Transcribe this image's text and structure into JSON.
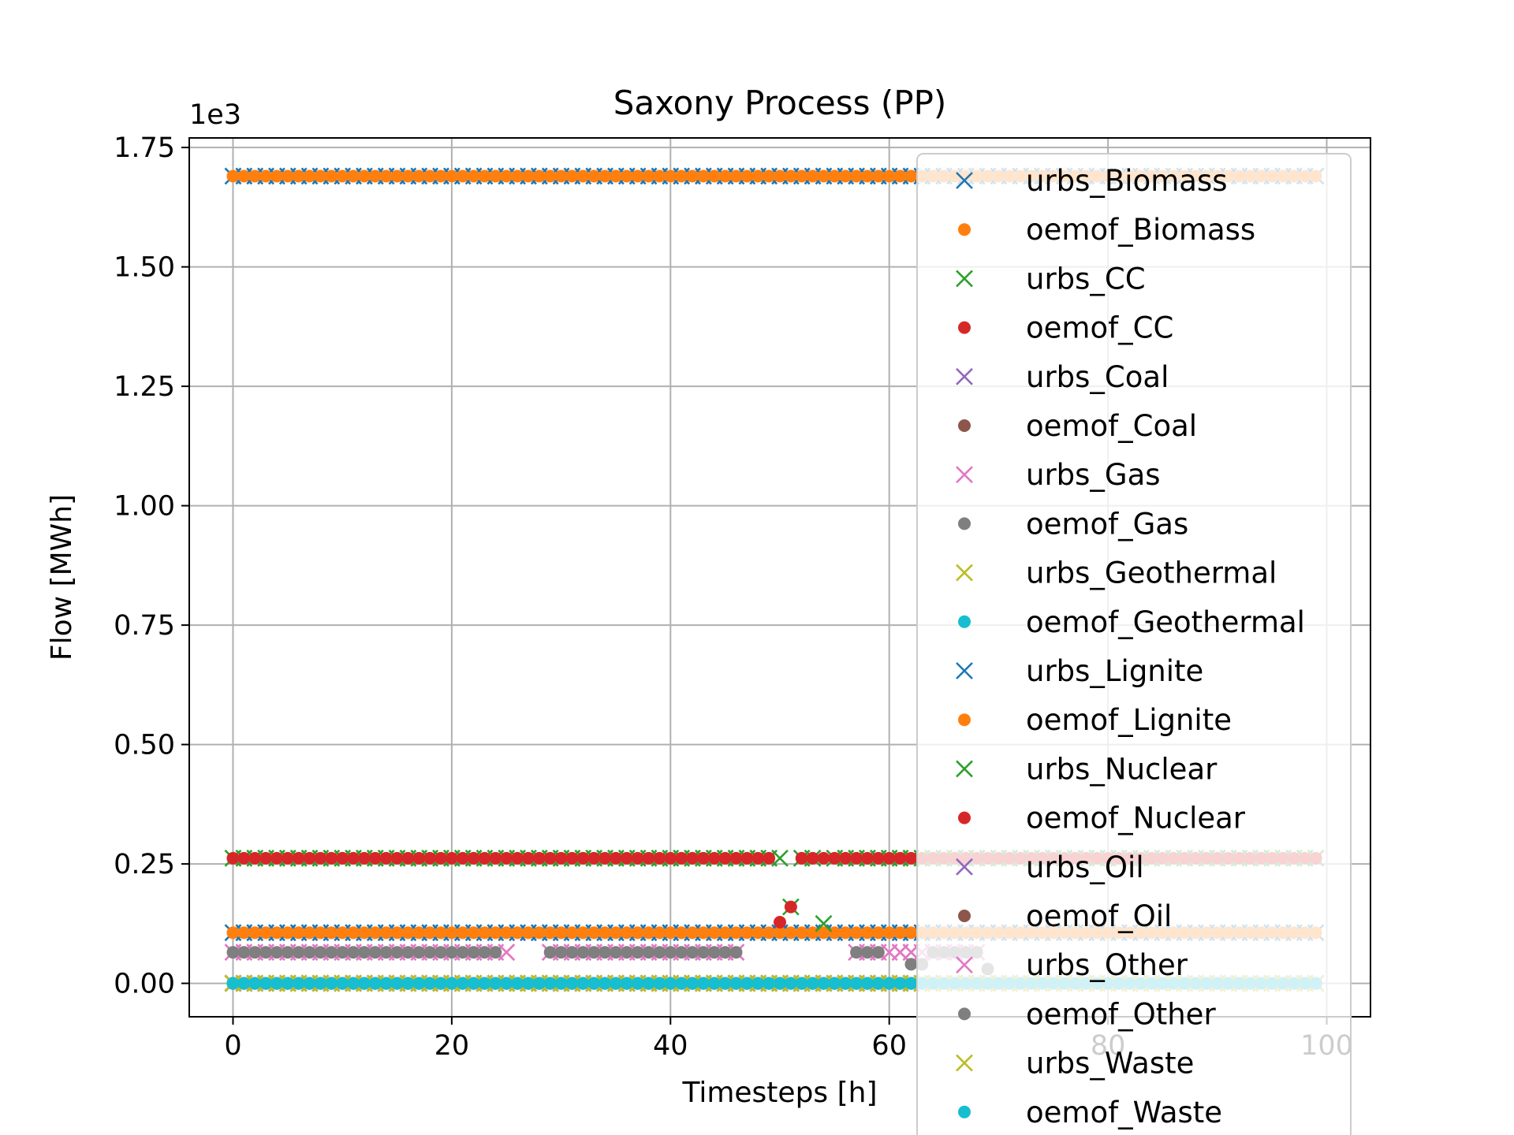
{
  "chart_data": {
    "type": "scatter",
    "title": "Saxony Process (PP)",
    "xlabel": "Timesteps [h]",
    "ylabel": "Flow [MWh]",
    "y_offset_label": "1e3",
    "xlim": [
      -4,
      104
    ],
    "ylim": [
      -0.07,
      1.77
    ],
    "y_scale_factor": 1000,
    "xticks": [
      0,
      20,
      40,
      60,
      80,
      100
    ],
    "yticks": [
      0.0,
      0.25,
      0.5,
      0.75,
      1.0,
      1.25,
      1.5,
      1.75
    ],
    "ytick_labels": [
      "0.00",
      "0.25",
      "0.50",
      "0.75",
      "1.00",
      "1.25",
      "1.50",
      "1.75"
    ],
    "grid": true,
    "legend_position": "right, overlapping plot",
    "x_count": 100,
    "series": [
      {
        "name": "urbs_Biomass",
        "marker": "x",
        "color": "#1f77b4",
        "constant": 1.69
      },
      {
        "name": "oemof_Biomass",
        "marker": "o",
        "color": "#ff7f0e",
        "constant": 1.69
      },
      {
        "name": "urbs_CC",
        "marker": "x",
        "color": "#2ca02c",
        "constant": 0.0
      },
      {
        "name": "oemof_CC",
        "marker": "o",
        "color": "#d62728",
        "constant": 0.0
      },
      {
        "name": "urbs_Coal",
        "marker": "x",
        "color": "#9467bd",
        "constant": 0.0
      },
      {
        "name": "oemof_Coal",
        "marker": "o",
        "color": "#8c564b",
        "constant": 0.0
      },
      {
        "name": "urbs_Gas",
        "marker": "x",
        "color": "#e377c2",
        "constant": 0.065,
        "gaps": [
          [
            26,
            28
          ],
          [
            47,
            56
          ],
          [
            69,
            99
          ]
        ],
        "points": [
          [
            25,
            0.065
          ],
          [
            61,
            0.065
          ],
          [
            62,
            0.065
          ]
        ]
      },
      {
        "name": "oemof_Gas",
        "marker": "o",
        "color": "#7f7f7f",
        "constant": 0.065,
        "gaps": [
          [
            25,
            28
          ],
          [
            47,
            56
          ],
          [
            60,
            99
          ]
        ],
        "points": [
          [
            62,
            0.04
          ],
          [
            63,
            0.04
          ],
          [
            64,
            0.065
          ],
          [
            65,
            0.065
          ],
          [
            66,
            0.065
          ],
          [
            67,
            0.065
          ],
          [
            68,
            0.065
          ],
          [
            69,
            0.03
          ]
        ]
      },
      {
        "name": "urbs_Geothermal",
        "marker": "x",
        "color": "#bcbd22",
        "constant": 0.0
      },
      {
        "name": "oemof_Geothermal",
        "marker": "o",
        "color": "#17becf",
        "constant": 0.0
      },
      {
        "name": "urbs_Lignite",
        "marker": "x",
        "color": "#1f77b4",
        "constant": 0.106
      },
      {
        "name": "oemof_Lignite",
        "marker": "o",
        "color": "#ff7f0e",
        "constant": 0.106
      },
      {
        "name": "urbs_Nuclear",
        "marker": "x",
        "color": "#2ca02c",
        "constant": 0.262,
        "overrides": [
          [
            51,
            0.16
          ],
          [
            54,
            0.125
          ]
        ]
      },
      {
        "name": "oemof_Nuclear",
        "marker": "o",
        "color": "#d62728",
        "constant": 0.262,
        "overrides": [
          [
            50,
            0.128
          ],
          [
            51,
            0.16
          ]
        ]
      },
      {
        "name": "urbs_Oil",
        "marker": "x",
        "color": "#9467bd",
        "constant": 0.0
      },
      {
        "name": "oemof_Oil",
        "marker": "o",
        "color": "#8c564b",
        "constant": 0.0
      },
      {
        "name": "urbs_Other",
        "marker": "x",
        "color": "#e377c2",
        "constant": 0.0
      },
      {
        "name": "oemof_Other",
        "marker": "o",
        "color": "#7f7f7f",
        "constant": 0.0
      },
      {
        "name": "urbs_Waste",
        "marker": "x",
        "color": "#bcbd22",
        "constant": 0.0
      },
      {
        "name": "oemof_Waste",
        "marker": "o",
        "color": "#17becf",
        "constant": 0.0
      }
    ]
  }
}
